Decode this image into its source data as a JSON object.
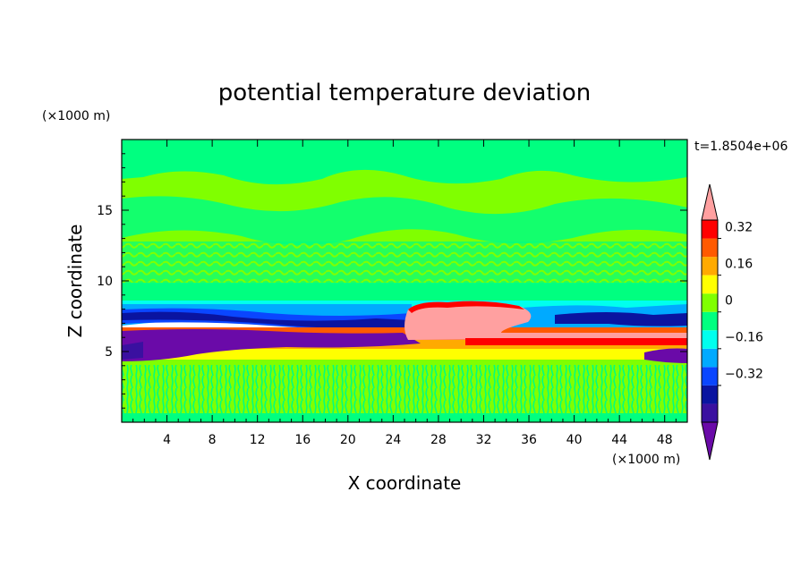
{
  "chart_data": {
    "type": "heatmap",
    "title": "potential temperature deviation",
    "xlabel": "X coordinate",
    "ylabel": "Z coordinate",
    "x_unit": "(×1000 m)",
    "y_unit": "(×1000 m)",
    "time_label": "t=1.8504e+06",
    "xlim": [
      0,
      50
    ],
    "ylim": [
      0,
      20
    ],
    "x_ticks": [
      4,
      8,
      12,
      16,
      20,
      24,
      28,
      32,
      36,
      40,
      44,
      48
    ],
    "y_ticks": [
      5,
      10,
      15
    ],
    "colorbar": {
      "levels": [
        -0.48,
        -0.4,
        -0.32,
        -0.24,
        -0.16,
        -0.08,
        0,
        0.08,
        0.16,
        0.24,
        0.32,
        0.4
      ],
      "tick_labels": [
        "0.32",
        "0.16",
        "0",
        "−0.16",
        "−0.32"
      ],
      "tick_values": [
        0.32,
        0.16,
        0,
        -0.16,
        -0.32
      ],
      "colors": [
        "#6a0aa8",
        "#3a10a0",
        "#0a14a0",
        "#0a46ff",
        "#00aaff",
        "#00ffee",
        "#00ff80",
        "#80ff00",
        "#ffff00",
        "#ffaa00",
        "#ff5a00",
        "#ff0000",
        "#ffa0a0"
      ],
      "extend": "both"
    },
    "layers": [
      {
        "z_range": [
          0.3,
          4.3
        ],
        "description": "near-zero noise",
        "value": 0.0
      },
      {
        "z_range": [
          4.3,
          5.0
        ],
        "value": 0.12
      },
      {
        "z_range": [
          5.0,
          5.4
        ],
        "value": 0.2
      },
      {
        "z_range": [
          5.4,
          6.6
        ],
        "value": -0.42
      },
      {
        "z_range": [
          7.0,
          8.3
        ],
        "value": -0.3
      },
      {
        "z_range": [
          8.3,
          10.0
        ],
        "value": 0.0
      },
      {
        "z_range": [
          6.0,
          8.6
        ],
        "x_range": [
          26,
          38
        ],
        "value": 0.42
      },
      {
        "z_range": [
          10.0,
          20.0
        ],
        "value": 0.04
      }
    ]
  }
}
